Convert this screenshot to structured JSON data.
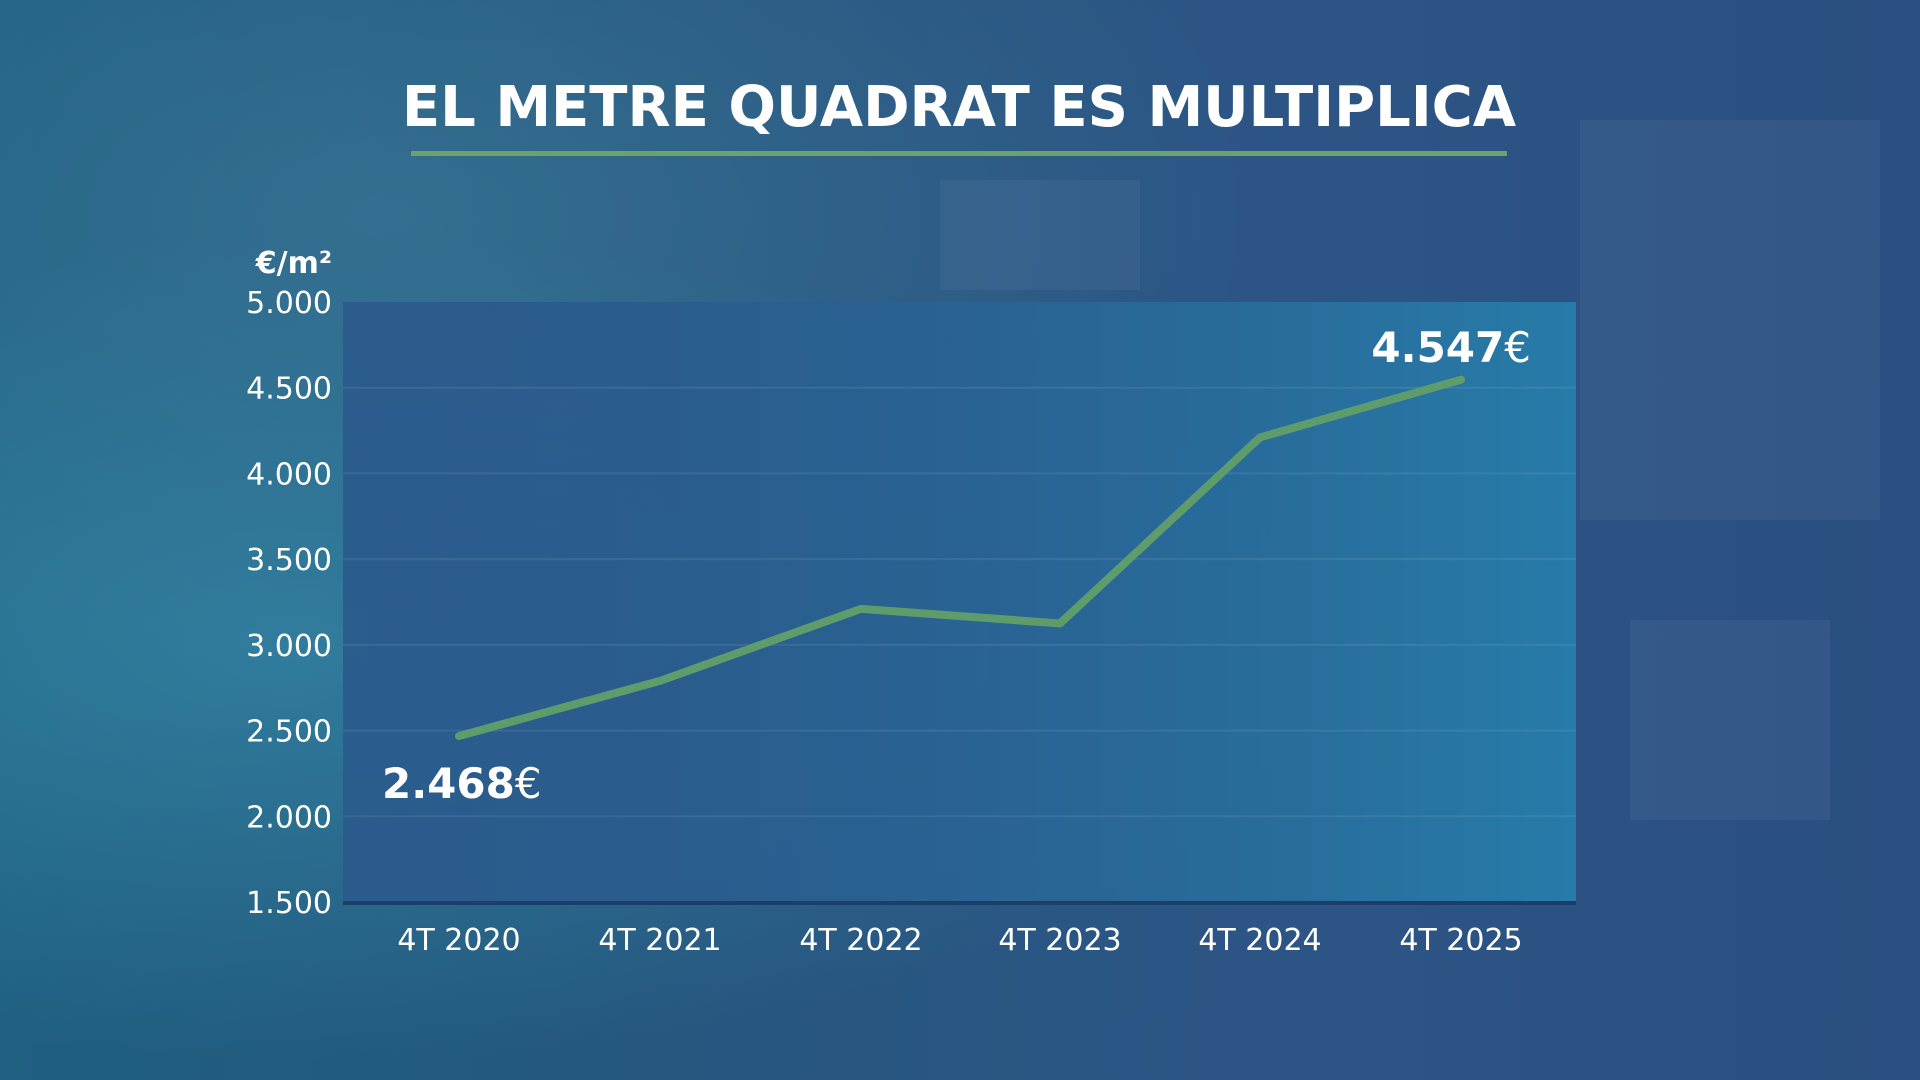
{
  "title": "EL METRE QUADRAT ES MULTIPLICA",
  "colors": {
    "line": "#5f9c6c",
    "underline": "#6ba36a",
    "plot_bg": "#2a5a8c"
  },
  "chart_data": {
    "type": "line",
    "title": "EL METRE QUADRAT ES MULTIPLICA",
    "ylabel": "€/m²",
    "xlabel": "",
    "categories": [
      "4T 2020",
      "4T 2021",
      "4T 2022",
      "4T 2023",
      "4T 2024",
      "4T 2025"
    ],
    "values": [
      2468,
      2790,
      3210,
      3125,
      4210,
      4547
    ],
    "ylim": [
      1500,
      5000
    ],
    "yticks": [
      "1.500",
      "2.000",
      "2.500",
      "3.000",
      "3.500",
      "4.000",
      "4.500",
      "5.000"
    ],
    "ytick_values": [
      1500,
      2000,
      2500,
      3000,
      3500,
      4000,
      4500,
      5000
    ],
    "grid": true,
    "data_labels": [
      {
        "index": 0,
        "value": "2.468",
        "unit": "€"
      },
      {
        "index": 5,
        "value": "4.547",
        "unit": "€"
      }
    ]
  }
}
